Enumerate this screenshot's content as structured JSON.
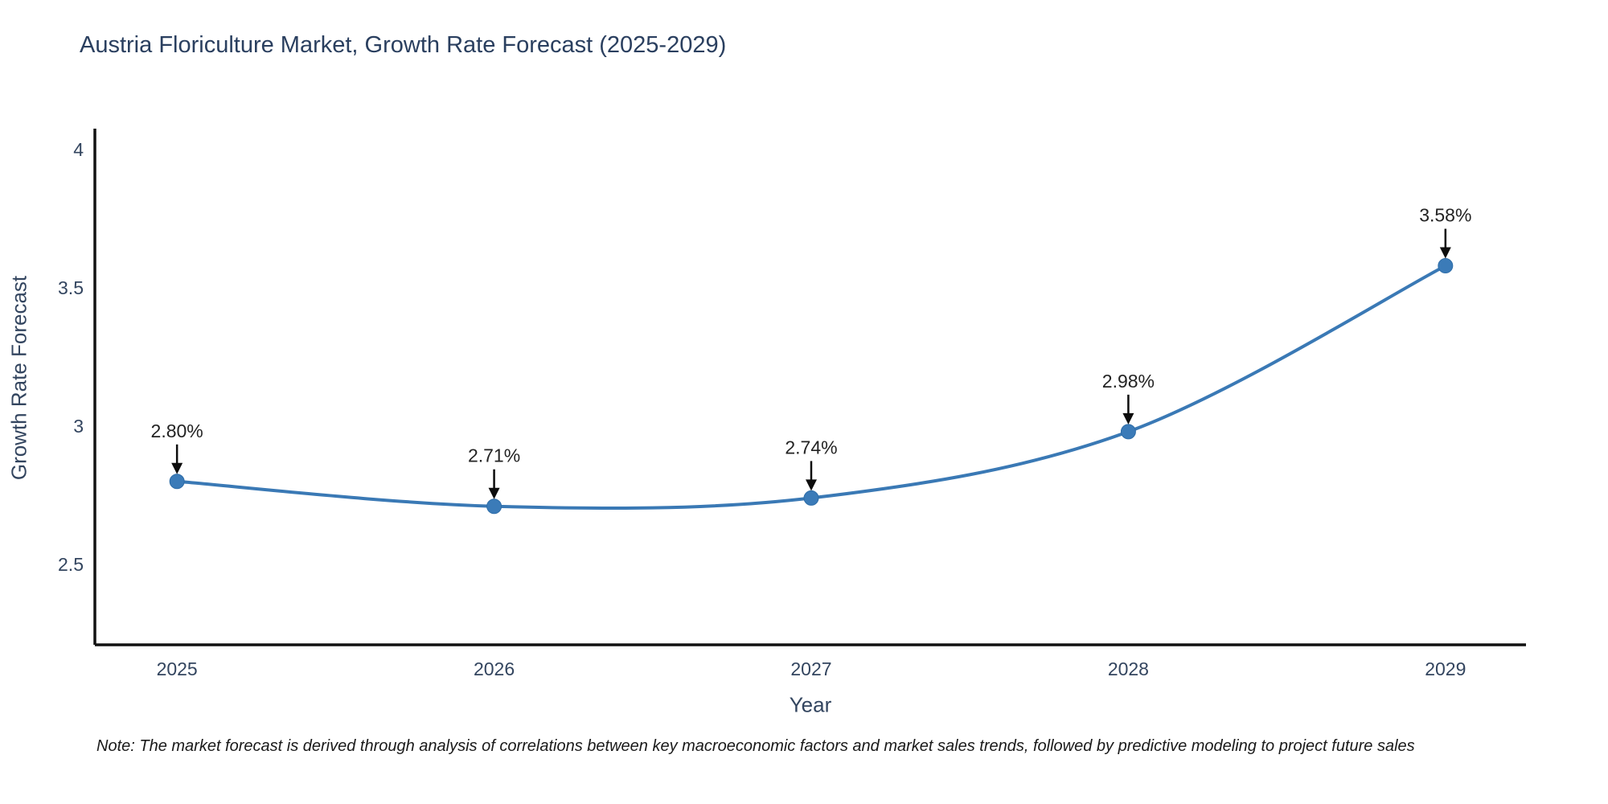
{
  "title": "Austria Floriculture Market, Growth Rate Forecast (2025-2029)",
  "note": "Note: The market forecast is derived through analysis of correlations between key macroeconomic factors and market sales trends, followed by predictive modeling to project future sales",
  "chart_data": {
    "type": "line",
    "title": "Austria Floriculture Market, Growth Rate Forecast (2025-2029)",
    "xlabel": "Year",
    "ylabel": "Growth Rate Forecast",
    "x": [
      2025,
      2026,
      2027,
      2028,
      2029
    ],
    "y": [
      2.8,
      2.71,
      2.74,
      2.98,
      3.58
    ],
    "point_labels": [
      "2.80%",
      "2.71%",
      "2.74%",
      "2.98%",
      "3.58%"
    ],
    "xtick_labels": [
      "2025",
      "2026",
      "2027",
      "2028",
      "2029"
    ],
    "yticks": [
      2.5,
      3,
      3.5,
      4
    ],
    "xlim": [
      2024.741,
      2029.254
    ],
    "ylim": [
      2.209,
      4.076
    ],
    "grid": false,
    "legend": "none",
    "line_shape": "spline",
    "colors": {
      "line": "#3a79b5",
      "marker": "#3b7bb8",
      "marker_edge": "#2e6da8",
      "axis": "#111111",
      "tick_text": "#33455f",
      "annotation_text": "#232323",
      "arrow": "#0d0d0d",
      "title_text": "#2a3f5f"
    }
  }
}
